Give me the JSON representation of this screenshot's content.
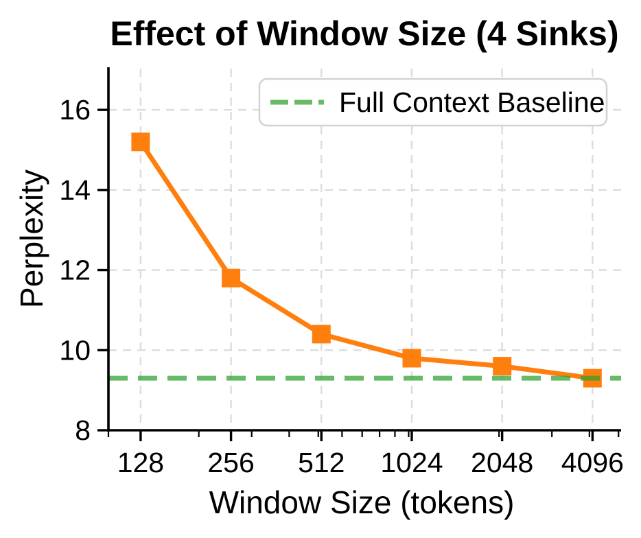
{
  "figure": {
    "background": "#ffffff"
  },
  "chart_data": {
    "type": "line",
    "title": "Effect of Window Size (4 Sinks)",
    "xlabel": "Window Size (tokens)",
    "ylabel": "Perplexity",
    "x_scale": "log",
    "xlim": [
      100,
      5100
    ],
    "ylim": [
      8,
      17.03
    ],
    "x": [
      128,
      256,
      512,
      1024,
      2048,
      4096
    ],
    "x_tick_labels": [
      "128",
      "256",
      "512",
      "1024",
      "2048",
      "4096"
    ],
    "x_minor_ticks": [
      100,
      200,
      300,
      400,
      500,
      600,
      700,
      800,
      900,
      1000,
      2000,
      3000,
      4000,
      5000
    ],
    "y_ticks": [
      8,
      10,
      12,
      14,
      16
    ],
    "y_tick_labels": [
      "8",
      "10",
      "12",
      "14",
      "16"
    ],
    "grid": true,
    "series": [
      {
        "x": [
          128,
          256,
          512,
          1024,
          2048,
          4096
        ],
        "values": [
          15.2,
          11.8,
          10.4,
          9.8,
          9.6,
          9.3
        ],
        "color": "#ff7f0e",
        "marker": "square",
        "line_style": "solid"
      }
    ],
    "baseline": {
      "label": "Full Context Baseline",
      "value": 9.3,
      "color": "#2ca02c",
      "opacity": 0.72,
      "line_style": "dashed"
    },
    "legend": {
      "position": "upper-right",
      "entries": [
        {
          "label": "Full Context Baseline",
          "color": "#2ca02c",
          "style": "dashed"
        }
      ]
    },
    "colors": {
      "grid": "#dcdcdc",
      "axis": "#000000",
      "text": "#000000",
      "legend_border": "#d2d2d2",
      "legend_fill": "#ffffff"
    }
  }
}
